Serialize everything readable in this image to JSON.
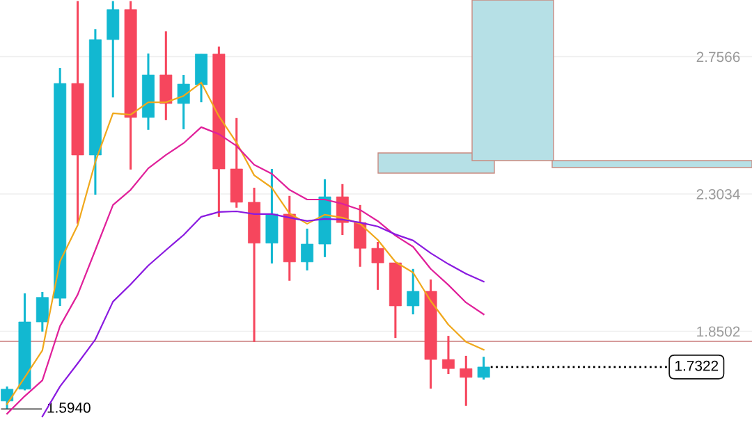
{
  "chart_data": {
    "type": "candlestick",
    "categories": [
      null,
      null,
      null,
      null,
      null,
      null,
      null,
      null,
      null,
      null,
      null,
      null,
      null,
      null,
      null,
      null,
      null,
      null,
      null,
      null,
      null,
      null,
      null,
      null,
      null,
      null,
      null,
      null
    ],
    "ohlc": [
      [
        1.62,
        1.668,
        1.594,
        1.659
      ],
      [
        1.659,
        1.975,
        1.655,
        1.881
      ],
      [
        1.881,
        1.98,
        1.849,
        1.962
      ],
      [
        1.959,
        2.719,
        1.934,
        2.668
      ],
      [
        2.668,
        2.94,
        2.205,
        2.432
      ],
      [
        2.432,
        2.847,
        2.301,
        2.813
      ],
      [
        2.813,
        2.94,
        2.622,
        2.912
      ],
      [
        2.912,
        2.94,
        2.384,
        2.556
      ],
      [
        2.556,
        2.767,
        2.515,
        2.696
      ],
      [
        2.696,
        2.84,
        2.547,
        2.602
      ],
      [
        2.602,
        2.696,
        2.517,
        2.666
      ],
      [
        2.664,
        2.765,
        2.606,
        2.765
      ],
      [
        2.765,
        2.79,
        2.228,
        2.386
      ],
      [
        2.386,
        2.554,
        2.258,
        2.276
      ],
      [
        2.276,
        2.324,
        1.815,
        2.141
      ],
      [
        2.141,
        2.386,
        2.074,
        2.237
      ],
      [
        2.237,
        2.297,
        2.017,
        2.079
      ],
      [
        2.079,
        2.189,
        2.051,
        2.138
      ],
      [
        2.138,
        2.352,
        2.095,
        2.294
      ],
      [
        2.294,
        2.336,
        2.168,
        2.209
      ],
      [
        2.209,
        2.267,
        2.063,
        2.124
      ],
      [
        2.124,
        2.145,
        1.987,
        2.076
      ],
      [
        2.076,
        2.076,
        1.828,
        1.934
      ],
      [
        1.934,
        2.056,
        1.906,
        1.982
      ],
      [
        1.982,
        2.021,
        1.661,
        1.757
      ],
      [
        1.757,
        1.835,
        1.709,
        1.727
      ],
      [
        1.727,
        1.769,
        1.604,
        1.698
      ],
      [
        1.698,
        1.766,
        1.691,
        1.7322
      ]
    ],
    "colors": [
      "#12b8d1",
      "#12b8d1",
      "#12b8d1",
      "#12b8d1",
      "#f6465d",
      "#12b8d1",
      "#12b8d1",
      "#f6465d",
      "#12b8d1",
      "#f6465d",
      "#12b8d1",
      "#12b8d1",
      "#f6465d",
      "#f6465d",
      "#f6465d",
      "#12b8d1",
      "#f6465d",
      "#12b8d1",
      "#12b8d1",
      "#f6465d",
      "#f6465d",
      "#f6465d",
      "#f6465d",
      "#12b8d1",
      "#f6465d",
      "#f6465d",
      "#f6465d",
      "#12b8d1"
    ],
    "series": [
      {
        "type": "line",
        "color": "#f0a81c",
        "values": [
          1.61,
          1.698,
          1.787,
          2.081,
          2.2,
          2.409,
          2.57,
          2.565,
          2.606,
          2.606,
          2.627,
          2.671,
          2.56,
          2.473,
          2.365,
          2.324,
          2.239,
          2.205,
          2.235,
          2.225,
          2.205,
          2.152,
          2.079,
          2.044,
          1.95,
          1.872,
          1.815,
          1.789
        ]
      },
      {
        "type": "line",
        "color": "#e0209a",
        "values": [
          1.578,
          1.636,
          1.688,
          1.867,
          1.971,
          2.118,
          2.267,
          2.317,
          2.388,
          2.432,
          2.471,
          2.524,
          2.501,
          2.462,
          2.4,
          2.37,
          2.317,
          2.285,
          2.285,
          2.271,
          2.251,
          2.214,
          2.166,
          2.129,
          2.056,
          2.003,
          1.945,
          1.906
        ]
      },
      {
        "type": "line",
        "color": "#8a1ae0",
        "values": [
          null,
          null,
          1.569,
          1.668,
          1.744,
          1.823,
          1.948,
          2.005,
          2.067,
          2.118,
          2.168,
          2.228,
          2.244,
          2.246,
          2.237,
          2.237,
          2.225,
          2.214,
          2.221,
          2.219,
          2.209,
          2.196,
          2.17,
          2.15,
          2.108,
          2.072,
          2.04,
          2.014
        ]
      }
    ],
    "ylim": [
      1.5507,
      2.9436
    ],
    "yticks": [
      2.7566,
      2.3034,
      1.8502
    ],
    "grid": "y",
    "ref_lines": [
      {
        "axis": "y",
        "value": 1.817,
        "color": "#c97a7a",
        "line_style": "solid"
      },
      {
        "axis": "y",
        "value": 1.7322,
        "label": "1.7322",
        "color": "#000000",
        "line_style": "dotted"
      }
    ],
    "annotations": [
      "1.5940"
    ]
  }
}
